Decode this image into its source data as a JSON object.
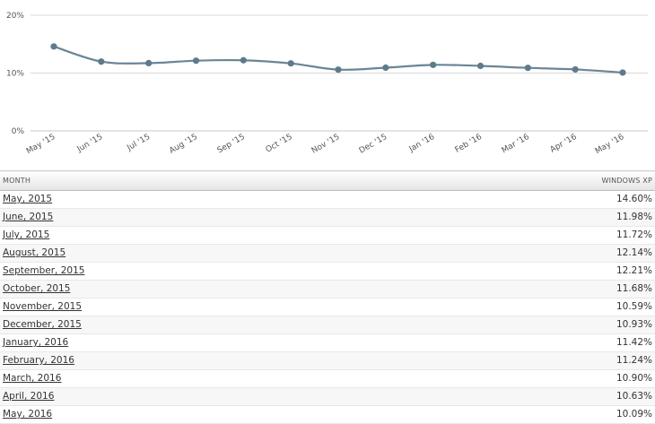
{
  "chart_data": {
    "type": "line",
    "categories": [
      "May '15",
      "Jun '15",
      "Jul '15",
      "Aug '15",
      "Sep '15",
      "Oct '15",
      "Nov '15",
      "Dec '15",
      "Jan '16",
      "Feb '16",
      "Mar '16",
      "Apr '16",
      "May '16"
    ],
    "series": [
      {
        "values": [
          14.6,
          11.98,
          11.72,
          12.14,
          12.21,
          11.68,
          10.59,
          10.93,
          11.42,
          11.24,
          10.9,
          10.63,
          10.09
        ]
      }
    ],
    "ylim": [
      0,
      20
    ],
    "yticks": [
      "0%",
      "10%",
      "20%"
    ],
    "grid": true,
    "line_color": "#6a8596",
    "marker_color": "#5e7a8c",
    "gridline_color": "#d8d8d8"
  },
  "table": {
    "headers": {
      "month": "MONTH",
      "value": "WINDOWS XP"
    },
    "rows": [
      {
        "month": "May, 2015",
        "value": "14.60%"
      },
      {
        "month": "June, 2015",
        "value": "11.98%"
      },
      {
        "month": "July, 2015",
        "value": "11.72%"
      },
      {
        "month": "August, 2015",
        "value": "12.14%"
      },
      {
        "month": "September, 2015",
        "value": "12.21%"
      },
      {
        "month": "October, 2015",
        "value": "11.68%"
      },
      {
        "month": "November, 2015",
        "value": "10.59%"
      },
      {
        "month": "December, 2015",
        "value": "10.93%"
      },
      {
        "month": "January, 2016",
        "value": "11.42%"
      },
      {
        "month": "February, 2016",
        "value": "11.24%"
      },
      {
        "month": "March, 2016",
        "value": "10.90%"
      },
      {
        "month": "April, 2016",
        "value": "10.63%"
      },
      {
        "month": "May, 2016",
        "value": "10.09%"
      }
    ]
  }
}
